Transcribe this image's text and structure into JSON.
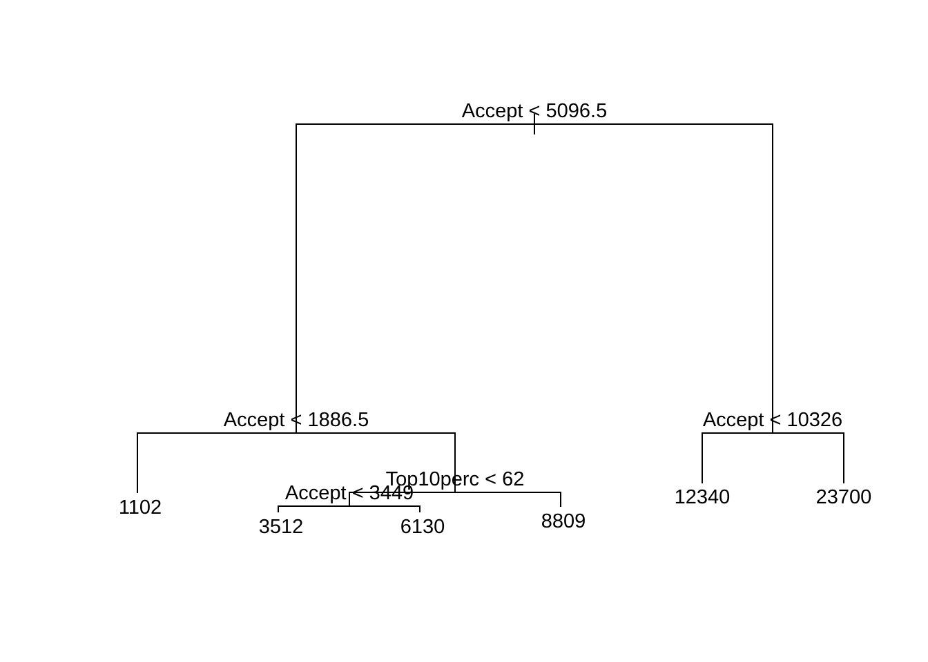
{
  "tree": {
    "splits": [
      {
        "id": "root",
        "label": "Accept < 5096.5"
      },
      {
        "id": "left",
        "label": "Accept < 1886.5"
      },
      {
        "id": "right",
        "label": "Accept < 10326"
      },
      {
        "id": "left-right",
        "label": "Top10perc < 62"
      },
      {
        "id": "left-right-left",
        "label": "Accept < 3449"
      }
    ],
    "leaves": [
      {
        "id": "leaf-1102",
        "value": "1102"
      },
      {
        "id": "leaf-3512",
        "value": "3512"
      },
      {
        "id": "leaf-6130",
        "value": "6130"
      },
      {
        "id": "leaf-8809",
        "value": "8809"
      },
      {
        "id": "leaf-12340",
        "value": "12340"
      },
      {
        "id": "leaf-23700",
        "value": "23700"
      }
    ]
  },
  "colors": {
    "line": "#000000",
    "text": "#000000",
    "background": "#ffffff"
  }
}
